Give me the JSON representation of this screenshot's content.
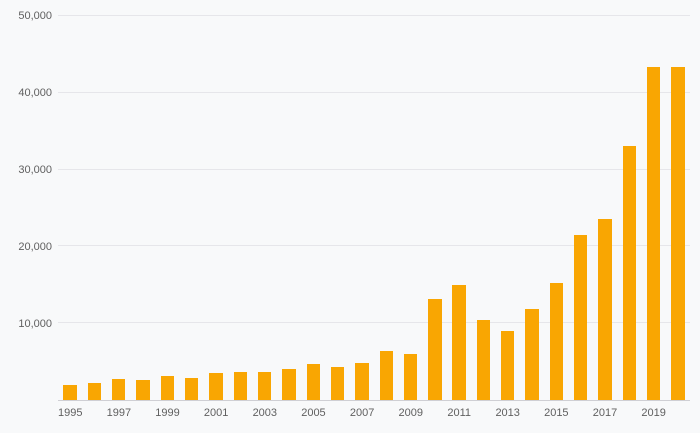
{
  "colors": {
    "bar": "#F9A602",
    "gridline": "#e6e6ea",
    "axis_line": "#cfcfd4",
    "tick_text": "#606060",
    "background": "#f8f9fa"
  },
  "chart_data": {
    "type": "bar",
    "title": "",
    "xlabel": "",
    "ylabel": "",
    "grid": true,
    "legend": false,
    "ylim": [
      0,
      50000
    ],
    "categories": [
      "1995",
      "1996",
      "1997",
      "1998",
      "1999",
      "2000",
      "2001",
      "2002",
      "2003",
      "2004",
      "2005",
      "2006",
      "2007",
      "2008",
      "2009",
      "2010",
      "2011",
      "2012",
      "2013",
      "2014",
      "2015",
      "2016",
      "2017",
      "2018",
      "2019",
      "2020"
    ],
    "values": [
      1900,
      2200,
      2700,
      2600,
      3100,
      2900,
      3500,
      3600,
      3700,
      4000,
      4700,
      4300,
      4800,
      6400,
      6000,
      13200,
      15000,
      10400,
      9000,
      11800,
      15300,
      21500,
      23600,
      33100,
      43400,
      43400
    ],
    "x_tick_labels": [
      "1995",
      "1997",
      "1999",
      "2001",
      "2003",
      "2005",
      "2007",
      "2009",
      "2011",
      "2013",
      "2015",
      "2017",
      "2019"
    ],
    "y_ticks": [
      {
        "value": 10000,
        "label": "10,000"
      },
      {
        "value": 20000,
        "label": "20,000"
      },
      {
        "value": 30000,
        "label": "30,000"
      },
      {
        "value": 40000,
        "label": "40,000"
      },
      {
        "value": 50000,
        "label": "50,000"
      }
    ]
  }
}
